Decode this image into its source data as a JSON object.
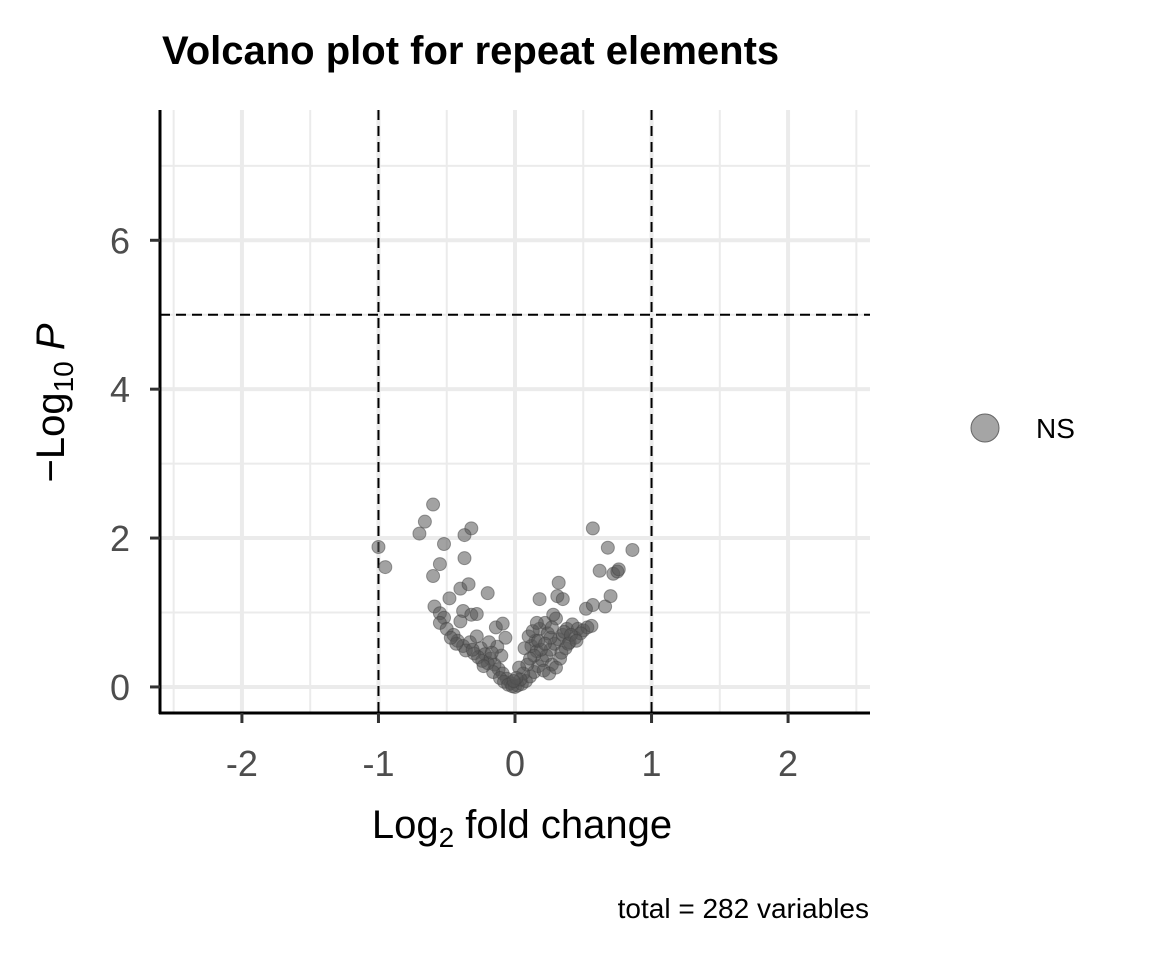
{
  "chart_data": {
    "type": "scatter",
    "title": "Volcano plot for repeat elements",
    "xlabel": {
      "base": "Log",
      "sub": "2",
      "rest": " fold change"
    },
    "ylabel": {
      "prefix": "−Log",
      "sub": "10",
      "italic": " P"
    },
    "caption": "total = 282 variables",
    "xlim": [
      -2.6,
      2.6
    ],
    "ylim": [
      -0.35,
      7.75
    ],
    "x_ticks": [
      -2,
      -1,
      0,
      1,
      2
    ],
    "x_tick_labels": [
      "-2",
      "-1",
      "0",
      "1",
      "2"
    ],
    "y_ticks": [
      0,
      2,
      4,
      6
    ],
    "y_tick_labels": [
      "0",
      "2",
      "4",
      "6"
    ],
    "grid": true,
    "fc_cutoff": [
      -1,
      1
    ],
    "p_cutoff": 5,
    "legend": {
      "position": "right",
      "entries": [
        {
          "name": "NS",
          "color": "#7f7f7f"
        }
      ]
    },
    "colors": {
      "point": "#555555",
      "grid": "#ebebeb",
      "axis": "#000000",
      "cutoff": "#000000"
    },
    "series": [
      {
        "name": "NS",
        "points": [
          [
            -1.0,
            1.88
          ],
          [
            -0.95,
            1.61
          ],
          [
            -0.6,
            2.45
          ],
          [
            -0.66,
            2.22
          ],
          [
            -0.7,
            2.06
          ],
          [
            -0.32,
            2.13
          ],
          [
            -0.37,
            2.04
          ],
          [
            -0.52,
            1.92
          ],
          [
            -0.55,
            1.65
          ],
          [
            -0.6,
            1.49
          ],
          [
            -0.37,
            1.73
          ],
          [
            -0.4,
            1.32
          ],
          [
            -0.34,
            1.38
          ],
          [
            -0.2,
            1.26
          ],
          [
            -0.48,
            1.19
          ],
          [
            -0.59,
            1.08
          ],
          [
            -0.55,
            0.99
          ],
          [
            -0.52,
            0.93
          ],
          [
            -0.38,
            1.02
          ],
          [
            -0.32,
            0.97
          ],
          [
            -0.28,
            0.98
          ],
          [
            -0.4,
            0.88
          ],
          [
            -0.55,
            0.86
          ],
          [
            -0.5,
            0.78
          ],
          [
            -0.45,
            0.7
          ],
          [
            -0.42,
            0.62
          ],
          [
            -0.38,
            0.55
          ],
          [
            -0.33,
            0.6
          ],
          [
            -0.28,
            0.68
          ],
          [
            -0.25,
            0.52
          ],
          [
            -0.22,
            0.44
          ],
          [
            -0.18,
            0.38
          ],
          [
            -0.15,
            0.3
          ],
          [
            -0.12,
            0.24
          ],
          [
            -0.09,
            0.18
          ],
          [
            -0.06,
            0.11
          ],
          [
            -0.03,
            0.05
          ],
          [
            -0.14,
            0.8
          ],
          [
            -0.07,
            0.66
          ],
          [
            -0.1,
            0.42
          ],
          [
            -0.3,
            0.45
          ],
          [
            -0.36,
            0.49
          ],
          [
            -0.43,
            0.58
          ],
          [
            -0.47,
            0.66
          ],
          [
            -0.2,
            0.32
          ],
          [
            -0.16,
            0.2
          ],
          [
            -0.11,
            0.12
          ],
          [
            -0.08,
            0.07
          ],
          [
            -0.05,
            0.03
          ],
          [
            -0.24,
            0.35
          ],
          [
            -0.27,
            0.4
          ],
          [
            -0.31,
            0.5
          ],
          [
            -0.13,
            0.54
          ],
          [
            -0.19,
            0.6
          ],
          [
            -0.23,
            0.28
          ],
          [
            -0.17,
            0.46
          ],
          [
            -0.09,
            0.85
          ],
          [
            0.0,
            0.0
          ],
          [
            0.02,
            0.02
          ],
          [
            -0.02,
            0.01
          ],
          [
            0.05,
            0.04
          ],
          [
            0.08,
            0.08
          ],
          [
            0.11,
            0.14
          ],
          [
            0.14,
            0.2
          ],
          [
            0.17,
            0.28
          ],
          [
            0.2,
            0.36
          ],
          [
            0.23,
            0.42
          ],
          [
            0.26,
            0.5
          ],
          [
            0.29,
            0.58
          ],
          [
            0.32,
            0.64
          ],
          [
            0.35,
            0.7
          ],
          [
            0.38,
            0.78
          ],
          [
            0.42,
            0.84
          ],
          [
            0.46,
            0.78
          ],
          [
            0.5,
            0.76
          ],
          [
            0.53,
            0.8
          ],
          [
            0.56,
            0.82
          ],
          [
            0.18,
            0.78
          ],
          [
            0.22,
            0.86
          ],
          [
            0.24,
            0.72
          ],
          [
            0.3,
            0.92
          ],
          [
            0.28,
            0.97
          ],
          [
            0.31,
            1.22
          ],
          [
            0.35,
            1.18
          ],
          [
            0.18,
            1.18
          ],
          [
            0.32,
            1.4
          ],
          [
            0.52,
            1.05
          ],
          [
            0.57,
            1.1
          ],
          [
            0.66,
            1.08
          ],
          [
            0.7,
            1.22
          ],
          [
            0.72,
            1.52
          ],
          [
            0.75,
            1.55
          ],
          [
            0.76,
            1.58
          ],
          [
            0.62,
            1.56
          ],
          [
            0.68,
            1.87
          ],
          [
            0.86,
            1.84
          ],
          [
            0.57,
            2.13
          ],
          [
            0.12,
            0.55
          ],
          [
            0.15,
            0.62
          ],
          [
            0.09,
            0.3
          ],
          [
            0.07,
            0.52
          ],
          [
            0.1,
            0.68
          ],
          [
            0.13,
            0.75
          ],
          [
            0.16,
            0.48
          ],
          [
            0.19,
            0.5
          ],
          [
            0.27,
            0.3
          ],
          [
            0.33,
            0.38
          ],
          [
            0.37,
            0.52
          ],
          [
            0.4,
            0.6
          ],
          [
            0.44,
            0.66
          ],
          [
            0.48,
            0.72
          ],
          [
            0.06,
            0.18
          ],
          [
            0.04,
            0.1
          ],
          [
            0.21,
            0.22
          ],
          [
            0.25,
            0.18
          ],
          [
            0.3,
            0.26
          ],
          [
            0.34,
            0.46
          ],
          [
            0.39,
            0.58
          ],
          [
            0.14,
            0.42
          ],
          [
            0.11,
            0.38
          ],
          [
            0.03,
            0.26
          ],
          [
            0.01,
            0.12
          ],
          [
            -0.01,
            0.08
          ],
          [
            0.17,
            0.62
          ],
          [
            0.26,
            0.66
          ],
          [
            0.36,
            0.74
          ],
          [
            0.41,
            0.7
          ],
          [
            0.45,
            0.62
          ],
          [
            0.22,
            0.58
          ],
          [
            0.27,
            0.8
          ],
          [
            0.16,
            0.86
          ]
        ]
      }
    ]
  }
}
